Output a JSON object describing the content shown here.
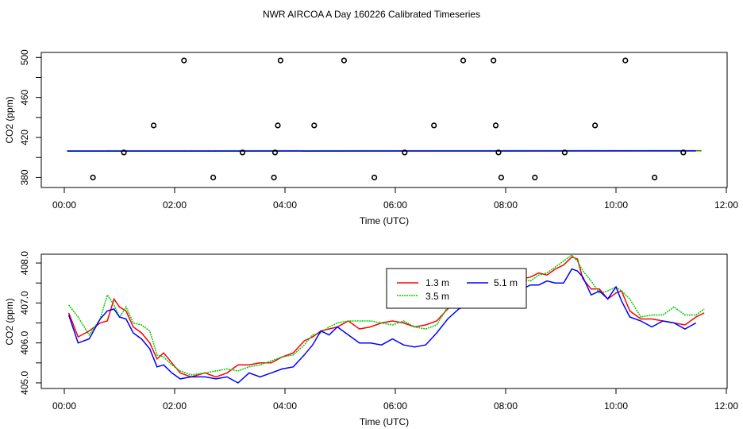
{
  "title": "NWR AIRCOA A  Day 160226  Calibrated Timeseries",
  "chart_data": [
    {
      "type": "scatter+line",
      "name": "top-panel",
      "xlabel": "Time (UTC)",
      "ylabel": "CO2 (ppm)",
      "xlim_hours": [
        0,
        12
      ],
      "ylim": [
        370,
        505
      ],
      "xticks": [
        "00:00",
        "02:00",
        "04:00",
        "06:00",
        "08:00",
        "10:00",
        "12:00"
      ],
      "yticks": [
        "380",
        "420",
        "460",
        "500"
      ],
      "points": [
        {
          "x": 0.52,
          "y": 380
        },
        {
          "x": 1.08,
          "y": 405
        },
        {
          "x": 1.62,
          "y": 432
        },
        {
          "x": 2.17,
          "y": 497
        },
        {
          "x": 2.7,
          "y": 380
        },
        {
          "x": 3.23,
          "y": 405
        },
        {
          "x": 3.8,
          "y": 380
        },
        {
          "x": 3.82,
          "y": 405
        },
        {
          "x": 3.87,
          "y": 432
        },
        {
          "x": 3.92,
          "y": 497
        },
        {
          "x": 4.53,
          "y": 432
        },
        {
          "x": 5.07,
          "y": 497
        },
        {
          "x": 5.62,
          "y": 380
        },
        {
          "x": 6.17,
          "y": 405
        },
        {
          "x": 6.7,
          "y": 432
        },
        {
          "x": 7.23,
          "y": 497
        },
        {
          "x": 7.78,
          "y": 497
        },
        {
          "x": 7.82,
          "y": 432
        },
        {
          "x": 7.87,
          "y": 405
        },
        {
          "x": 7.92,
          "y": 380
        },
        {
          "x": 8.53,
          "y": 380
        },
        {
          "x": 9.07,
          "y": 405
        },
        {
          "x": 9.62,
          "y": 432
        },
        {
          "x": 10.17,
          "y": 497
        },
        {
          "x": 10.7,
          "y": 380
        },
        {
          "x": 11.22,
          "y": 405
        }
      ],
      "series": [
        {
          "name": "1.3 m",
          "color": "#ff0000",
          "x": [
            0.05,
            11.55
          ],
          "values": [
            406.5,
            406.7
          ]
        },
        {
          "name": "3.5 m",
          "color": "#00cc00",
          "x": [
            0.05,
            11.55
          ],
          "values": [
            406.8,
            406.9
          ]
        },
        {
          "name": "5.1 m",
          "color": "#0000ff",
          "x": [
            0.05,
            11.45
          ],
          "values": [
            406.3,
            406.5
          ]
        }
      ]
    },
    {
      "type": "line",
      "name": "bottom-panel",
      "xlabel": "Time (UTC)",
      "ylabel": "CO2 (ppm)",
      "xlim_hours": [
        0,
        12
      ],
      "ylim": [
        405,
        408
      ],
      "xticks": [
        "00:00",
        "02:00",
        "04:00",
        "06:00",
        "08:00",
        "10:00",
        "12:00"
      ],
      "yticks": [
        "405.0",
        "406.0",
        "407.0",
        "408.0"
      ],
      "legend": {
        "placement": "top-center"
      },
      "series": [
        {
          "name": "1.3 m",
          "color": "#ff0000",
          "x": [
            0.08,
            0.25,
            0.45,
            0.65,
            0.78,
            0.9,
            1.0,
            1.12,
            1.25,
            1.4,
            1.55,
            1.68,
            1.8,
            1.95,
            2.1,
            2.3,
            2.55,
            2.75,
            2.95,
            3.15,
            3.35,
            3.55,
            3.75,
            3.95,
            4.15,
            4.35,
            4.5,
            4.65,
            4.8,
            4.95,
            5.15,
            5.35,
            5.55,
            5.75,
            5.95,
            6.15,
            6.35,
            6.55,
            6.75,
            6.95,
            7.15,
            7.35,
            7.55,
            7.75,
            7.95,
            8.15,
            8.3,
            8.45,
            8.6,
            8.75,
            8.9,
            9.05,
            9.2,
            9.3,
            9.4,
            9.55,
            9.7,
            9.85,
            10.0,
            10.1,
            10.25,
            10.45,
            10.65,
            10.85,
            11.05,
            11.25,
            11.45,
            11.6
          ],
          "values": [
            406.75,
            406.15,
            406.3,
            406.5,
            406.55,
            407.1,
            406.9,
            406.8,
            406.4,
            406.25,
            406.0,
            405.6,
            405.75,
            405.5,
            405.25,
            405.15,
            405.25,
            405.15,
            405.25,
            405.45,
            405.45,
            405.5,
            405.5,
            405.65,
            405.75,
            406.05,
            406.15,
            406.3,
            406.35,
            406.4,
            406.55,
            406.35,
            406.4,
            406.5,
            406.55,
            406.5,
            406.4,
            406.45,
            406.55,
            406.85,
            407.05,
            407.1,
            407.35,
            407.4,
            407.5,
            407.55,
            407.6,
            407.65,
            407.75,
            407.7,
            407.85,
            407.95,
            408.15,
            408.1,
            407.6,
            407.35,
            407.35,
            407.1,
            407.25,
            407.3,
            406.8,
            406.6,
            406.6,
            406.55,
            406.5,
            406.45,
            406.65,
            406.75
          ]
        },
        {
          "name": "3.5 m",
          "color": "#00cc00",
          "x": [
            0.08,
            0.25,
            0.45,
            0.65,
            0.78,
            0.9,
            1.0,
            1.12,
            1.25,
            1.4,
            1.55,
            1.68,
            1.8,
            1.95,
            2.1,
            2.3,
            2.55,
            2.75,
            2.95,
            3.15,
            3.35,
            3.55,
            3.75,
            3.95,
            4.15,
            4.35,
            4.5,
            4.65,
            4.8,
            4.95,
            5.15,
            5.35,
            5.55,
            5.75,
            5.95,
            6.15,
            6.35,
            6.55,
            6.75,
            6.95,
            7.15,
            7.35,
            7.55,
            7.75,
            7.95,
            8.15,
            8.3,
            8.45,
            8.6,
            8.75,
            8.9,
            9.05,
            9.2,
            9.3,
            9.4,
            9.55,
            9.7,
            9.85,
            10.0,
            10.1,
            10.25,
            10.45,
            10.65,
            10.85,
            11.05,
            11.25,
            11.45,
            11.6
          ],
          "values": [
            406.95,
            406.65,
            406.2,
            406.6,
            407.2,
            406.95,
            406.65,
            406.9,
            406.5,
            406.45,
            406.3,
            405.7,
            405.65,
            405.45,
            405.3,
            405.2,
            405.25,
            405.3,
            405.35,
            405.3,
            405.4,
            405.45,
            405.55,
            405.65,
            405.7,
            405.95,
            406.2,
            406.25,
            406.4,
            406.5,
            406.55,
            406.55,
            406.55,
            406.5,
            406.45,
            406.55,
            406.4,
            406.35,
            406.45,
            406.9,
            407.0,
            407.15,
            407.25,
            407.3,
            407.45,
            407.5,
            407.6,
            407.55,
            407.7,
            407.75,
            407.9,
            408.05,
            408.2,
            408.05,
            407.8,
            407.55,
            407.25,
            407.3,
            407.4,
            407.3,
            407.1,
            406.65,
            406.7,
            406.7,
            406.9,
            406.7,
            406.7,
            406.85
          ]
        },
        {
          "name": "5.1 m",
          "color": "#0000ff",
          "x": [
            0.08,
            0.25,
            0.45,
            0.65,
            0.78,
            0.9,
            1.0,
            1.12,
            1.25,
            1.4,
            1.55,
            1.68,
            1.8,
            1.95,
            2.1,
            2.3,
            2.55,
            2.75,
            2.95,
            3.15,
            3.35,
            3.55,
            3.75,
            3.95,
            4.15,
            4.35,
            4.5,
            4.65,
            4.8,
            4.95,
            5.15,
            5.35,
            5.55,
            5.75,
            5.95,
            6.15,
            6.35,
            6.55,
            6.75,
            6.95,
            7.15,
            7.35,
            7.55,
            7.75,
            7.95,
            8.15,
            8.3,
            8.45,
            8.6,
            8.75,
            8.9,
            9.05,
            9.2,
            9.3,
            9.4,
            9.55,
            9.7,
            9.85,
            10.0,
            10.1,
            10.25,
            10.45,
            10.65,
            10.85,
            11.05,
            11.25,
            11.45
          ],
          "values": [
            406.7,
            406.0,
            406.1,
            406.6,
            406.8,
            406.85,
            406.65,
            406.6,
            406.25,
            406.1,
            405.85,
            405.4,
            405.45,
            405.25,
            405.1,
            405.15,
            405.15,
            405.1,
            405.15,
            405.0,
            405.25,
            405.15,
            405.25,
            405.35,
            405.4,
            405.7,
            405.95,
            406.3,
            406.2,
            406.4,
            406.2,
            406.0,
            406.0,
            405.95,
            406.1,
            405.95,
            405.9,
            405.95,
            406.25,
            406.6,
            406.85,
            406.95,
            407.05,
            407.1,
            407.2,
            407.25,
            407.35,
            407.45,
            407.45,
            407.55,
            407.5,
            407.5,
            407.85,
            407.8,
            407.65,
            407.2,
            407.3,
            407.1,
            407.4,
            407.05,
            406.65,
            406.55,
            406.4,
            406.55,
            406.5,
            406.35,
            406.5
          ]
        }
      ]
    }
  ]
}
